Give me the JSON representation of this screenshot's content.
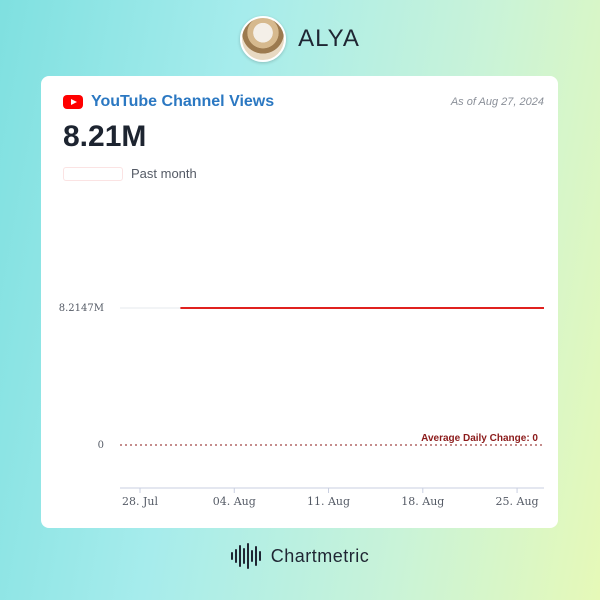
{
  "artist": {
    "name": "ALYA"
  },
  "card": {
    "title": "YouTube Channel Views",
    "as_of": "As of Aug 27, 2024",
    "big_value": "8.21M",
    "period": "Past month"
  },
  "footer": {
    "brand": "Chartmetric"
  },
  "colors": {
    "series": "#e0211f",
    "avg_line": "#8b1a1a",
    "title": "#2b78c2"
  },
  "chart_data": {
    "type": "line",
    "title": "",
    "xlabel": "",
    "ylabel": "",
    "x_ticks": [
      "28. Jul",
      "04. Aug",
      "11. Aug",
      "18. Aug",
      "25. Aug"
    ],
    "y_ticks": [
      "0",
      "8.2147M"
    ],
    "series": [
      {
        "x": [
          "2024-07-31",
          "2024-08-27"
        ],
        "values": [
          8214700,
          8214700
        ]
      }
    ],
    "annotations": [
      "Average Daily Change: 0"
    ],
    "average_daily_change": 0,
    "grid": true
  }
}
